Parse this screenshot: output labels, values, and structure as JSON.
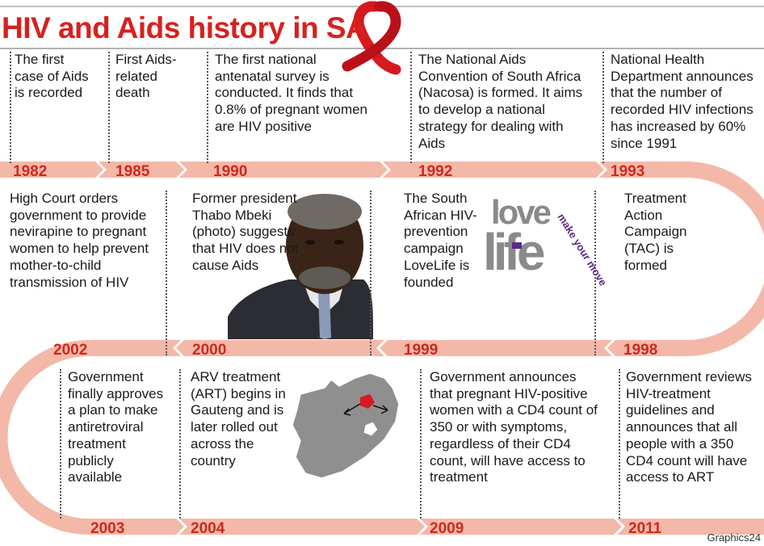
{
  "title": "HIV and Aids history in SA",
  "credit": "Graphics24",
  "logo": {
    "love": "love",
    "life": "life",
    "tagline": "make your move"
  },
  "colors": {
    "title": "#d7211e",
    "band": "#f4b8a8",
    "year": "#cc2a1f",
    "ribbon": "#d71920",
    "logo_purple": "#5b2a86"
  },
  "events": [
    {
      "year": "1982",
      "text": "The first case of Aids is recorded"
    },
    {
      "year": "1985",
      "text": "First Aids-related death"
    },
    {
      "year": "1990",
      "text": "The first national antenatal survey is conducted. It finds that 0.8% of pregnant women are HIV positive"
    },
    {
      "year": "1992",
      "text": "The National Aids Convention of South Africa (Nacosa) is formed. It aims to develop a national strategy for dealing with Aids"
    },
    {
      "year": "1993",
      "text": "National Health Department announces that the number of recorded HIV infections has increased by 60% since 1991"
    },
    {
      "year": "2002",
      "text": "High Court orders government to provide nevirapine to pregnant women to help prevent mother-to-child transmission of HIV"
    },
    {
      "year": "2000",
      "text": "Former president Thabo Mbeki (photo) suggests that HIV does not cause Aids"
    },
    {
      "year": "1999",
      "text": "The South African HIV-prevention campaign LoveLife is founded"
    },
    {
      "year": "1998",
      "text": "Treatment Action Campaign (TAC) is formed"
    },
    {
      "year": "2003",
      "text": "Government finally approves a plan to make antiretroviral treatment publicly available"
    },
    {
      "year": "2004",
      "text": "ARV treatment (ART) begins in Gauteng and is later rolled out across the country"
    },
    {
      "year": "2009",
      "text": "Government announces that pregnant HIV-positive women with a CD4 count of 350 or with symptoms, regardless of their CD4 count, will have access to treatment"
    },
    {
      "year": "2011",
      "text": "Government reviews HIV-treatment guidelines and announces that all people with a 350 CD4 count will have access to ART"
    }
  ]
}
